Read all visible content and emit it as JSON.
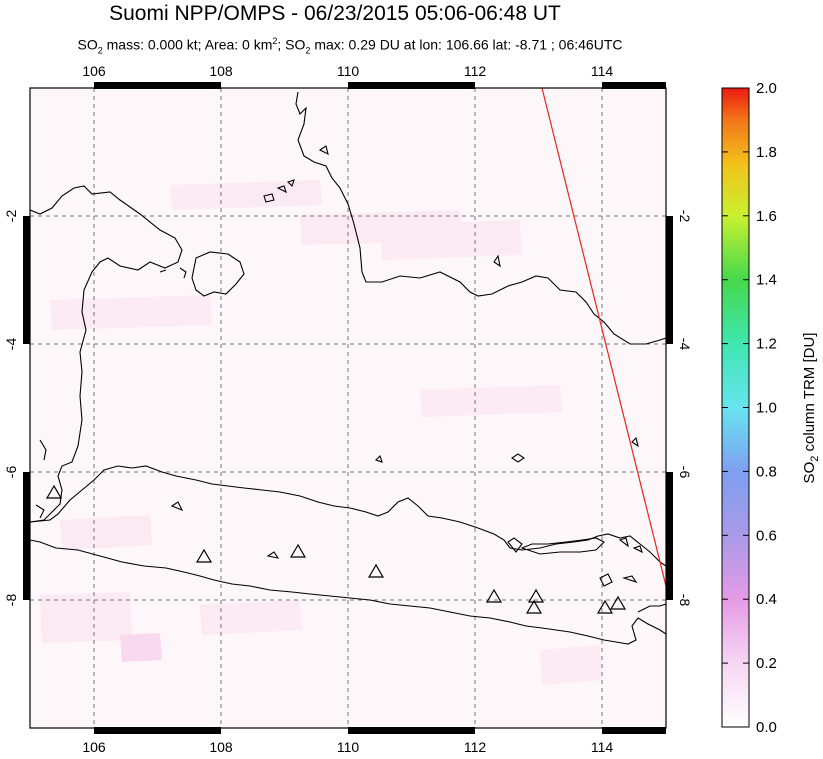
{
  "header": {
    "title": "Suomi NPP/OMPS - 06/23/2015 05:06-06:48 UT",
    "subtitle_prefix": "SO",
    "subtitle_mass": " mass: 0.000 kt; Area: 0 km",
    "subtitle_area_sup": "2",
    "subtitle_max": "; SO",
    "subtitle_rest": " max: 0.29 DU at lon: 106.66 lat: -8.71 ; 06:46UTC"
  },
  "map": {
    "lon_ticks": [
      "106",
      "108",
      "110",
      "112",
      "114"
    ],
    "lat_ticks_left": [
      "-2",
      "-4",
      "-6",
      "-8"
    ],
    "lat_ticks_right": [
      "-2",
      "-4",
      "-6",
      "-8"
    ],
    "volcano_marker": "triangle",
    "orbit_edge_color": "#e8251b",
    "background_tint": "#fdf5f9"
  },
  "colorbar": {
    "ticks": [
      "2.0",
      "1.8",
      "1.6",
      "1.4",
      "1.2",
      "1.0",
      "0.8",
      "0.6",
      "0.4",
      "0.2",
      "0.0"
    ],
    "label": "SO2 column TRM [DU]",
    "label_prefix": "SO",
    "label_sub": "2",
    "label_suffix": " column TRM [DU]",
    "range": [
      0.0,
      2.0
    ]
  }
}
